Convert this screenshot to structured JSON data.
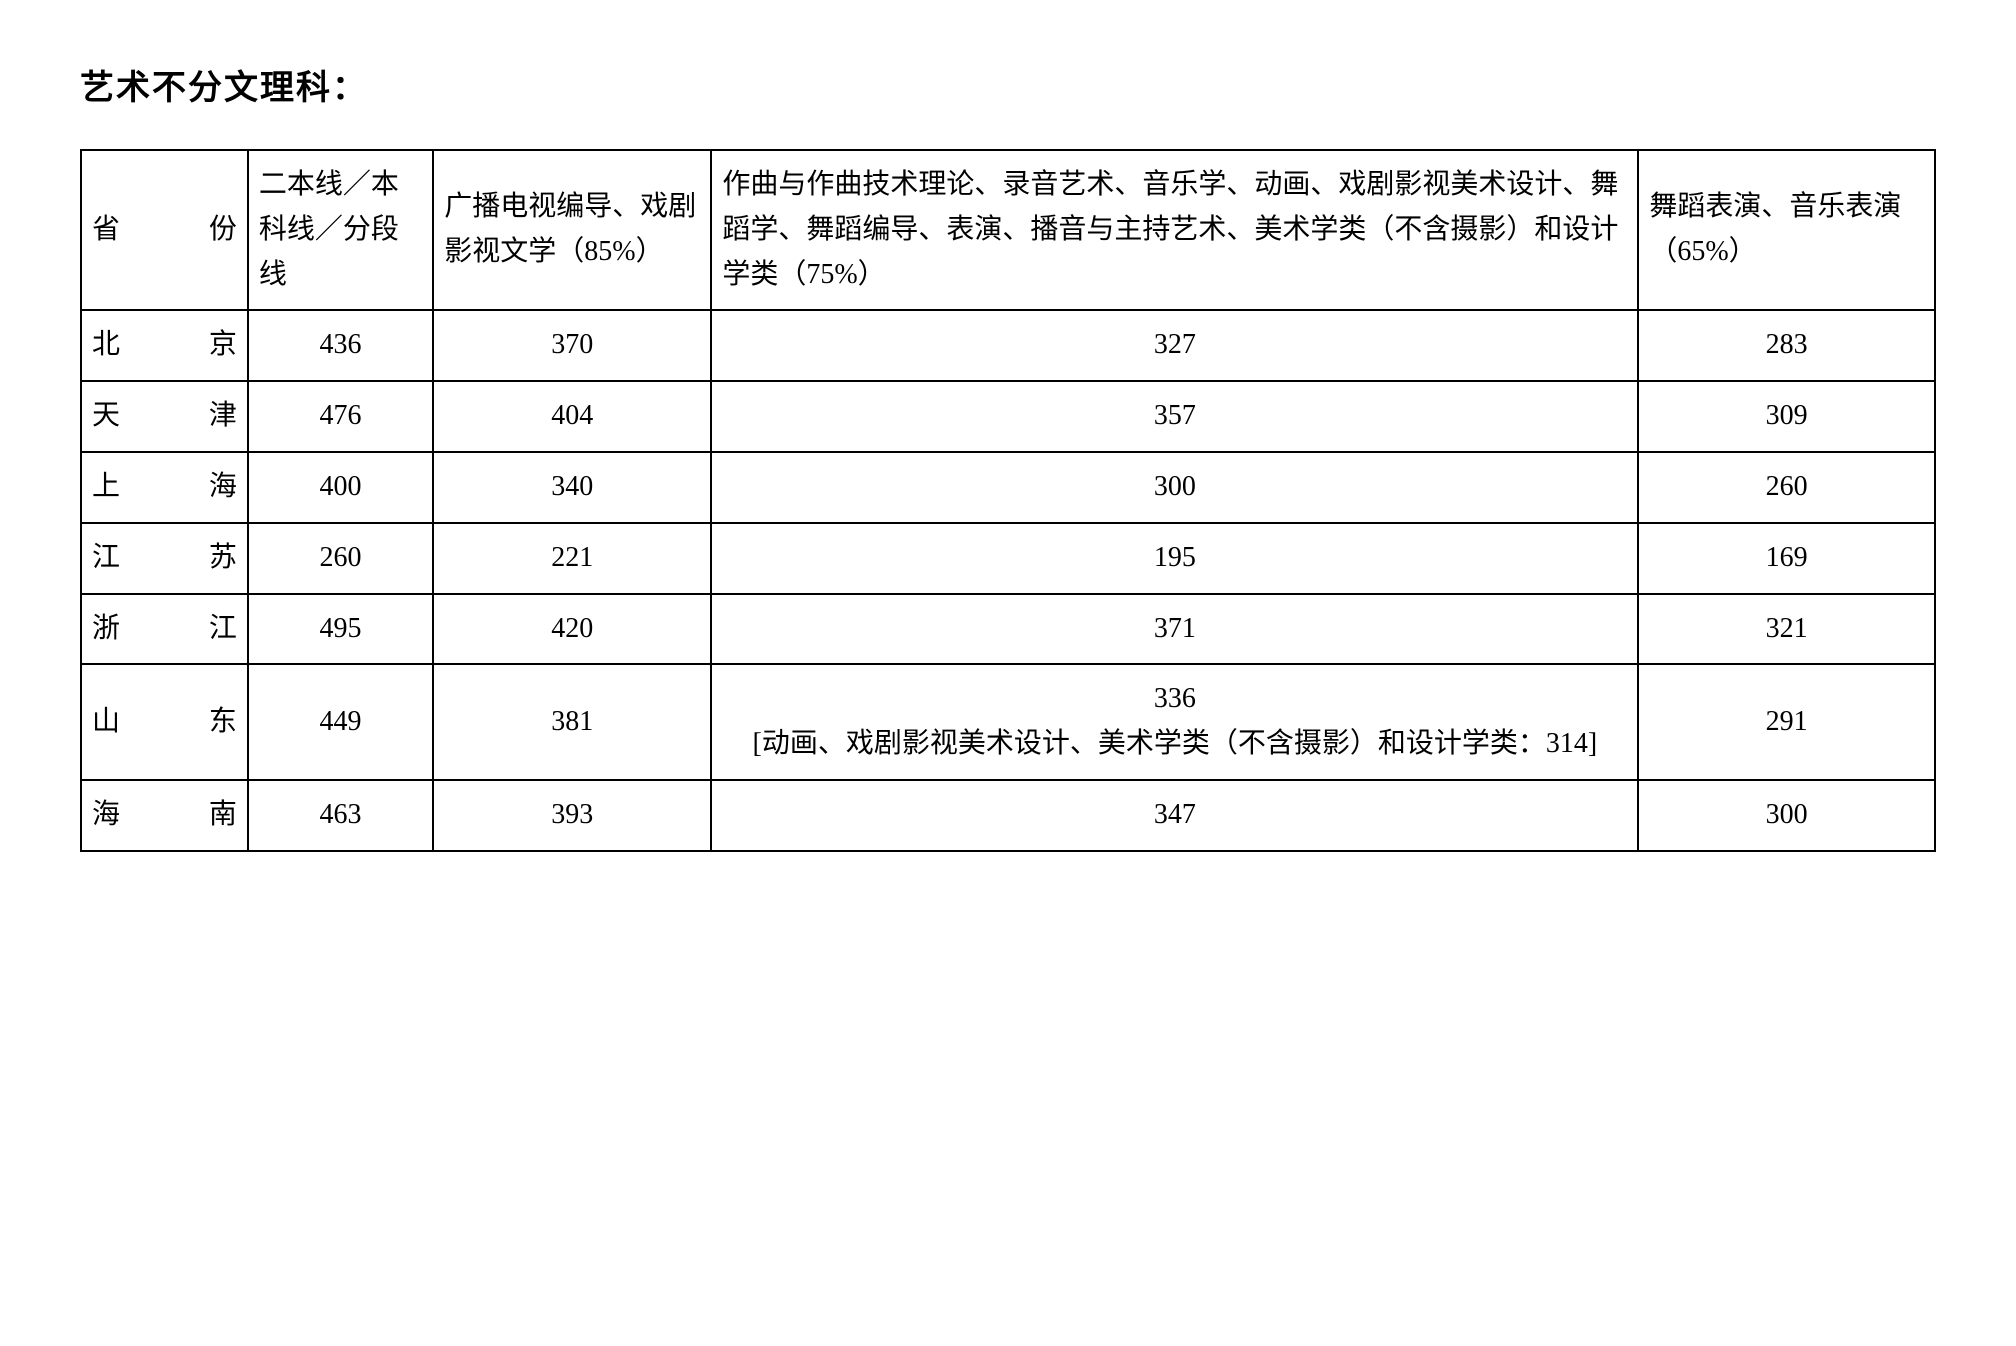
{
  "title": "艺术不分文理科：",
  "table": {
    "headers": {
      "province": "省　份",
      "baseline": "二本线／本科线／分段线",
      "col85": "广播电视编导、戏剧影视文学（85%）",
      "col75": "作曲与作曲技术理论、录音艺术、音乐学、动画、戏剧影视美术设计、舞蹈学、舞蹈编导、表演、播音与主持艺术、美术学类（不含摄影）和设计学类（75%）",
      "col65": "舞蹈表演、音乐表演（65%）"
    },
    "rows": [
      {
        "province": "北　京",
        "baseline": "436",
        "c85": "370",
        "c75": "327",
        "c65": "283"
      },
      {
        "province": "天　津",
        "baseline": "476",
        "c85": "404",
        "c75": "357",
        "c65": "309"
      },
      {
        "province": "上　海",
        "baseline": "400",
        "c85": "340",
        "c75": "300",
        "c65": "260"
      },
      {
        "province": "江　苏",
        "baseline": "260",
        "c85": "221",
        "c75": "195",
        "c65": "169"
      },
      {
        "province": "浙　江",
        "baseline": "495",
        "c85": "420",
        "c75": "371",
        "c65": "321"
      },
      {
        "province": "山　东",
        "baseline": "449",
        "c85": "381",
        "c75": "336\n[动画、戏剧影视美术设计、美术学类（不含摄影）和设计学类：314]",
        "c65": "291"
      },
      {
        "province": "海　南",
        "baseline": "463",
        "c85": "393",
        "c75": "347",
        "c65": "300"
      }
    ]
  },
  "styles": {
    "background_color": "#ffffff",
    "text_color": "#000000",
    "border_color": "#000000",
    "title_fontsize": 34,
    "cell_fontsize": 28,
    "font_family": "SimSun"
  }
}
